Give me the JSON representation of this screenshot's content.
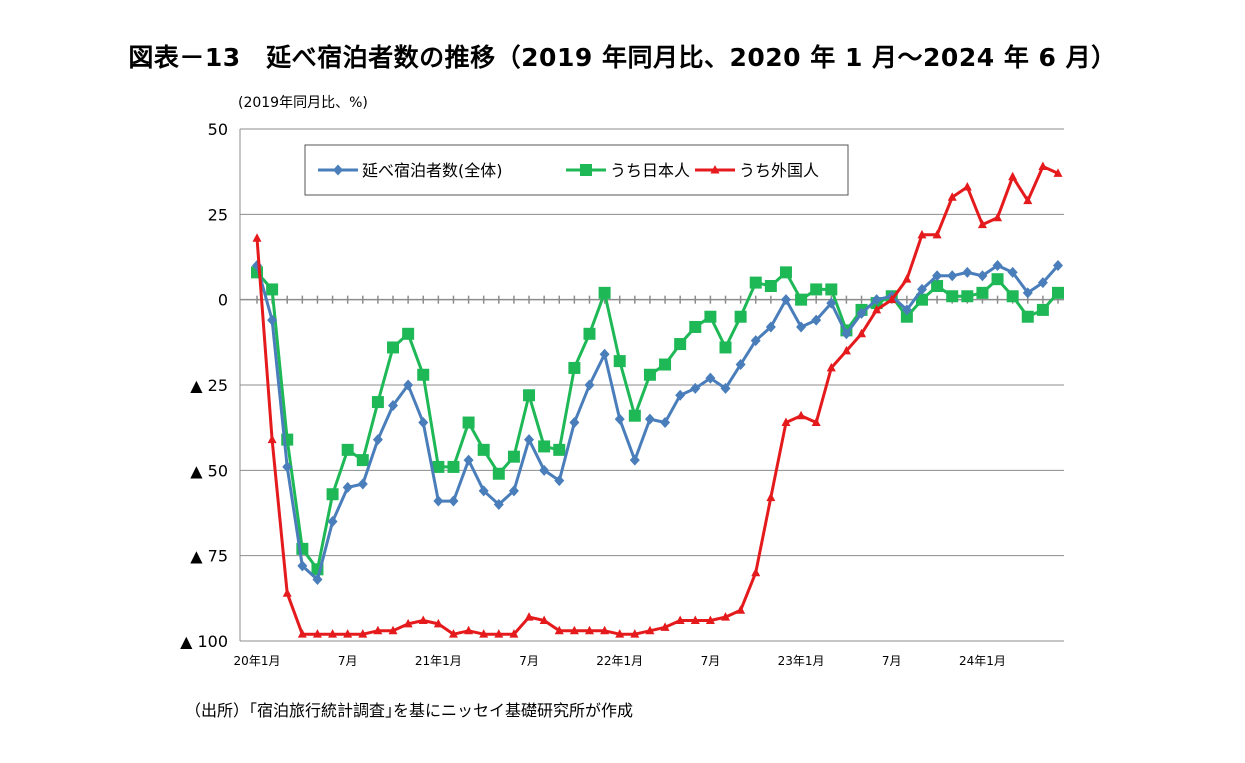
{
  "title": "図表－13　延べ宿泊者数の推移（2019 年同月比、2020 年 1 月～2024 年 6 月）",
  "unit_label": "(2019年同月比、%)",
  "source_note": "（出所）｢宿泊旅行統計調査｣を基にニッセイ基礎研究所が作成",
  "colors": {
    "total": "#4a7ebb",
    "japanese": "#1fb857",
    "foreign": "#e41a1c",
    "grid": "#8c8c8c"
  },
  "chart_data": {
    "type": "line",
    "ylabel": "(2019年同月比、%)",
    "ylim": [
      -100,
      50
    ],
    "grid": true,
    "legend_position": "top-left",
    "y_ticks": [
      {
        "value": 50,
        "label": "50"
      },
      {
        "value": 25,
        "label": "25"
      },
      {
        "value": 0,
        "label": "0"
      },
      {
        "value": -25,
        "label": "▲ 25"
      },
      {
        "value": -50,
        "label": "▲ 50"
      },
      {
        "value": -75,
        "label": "▲ 75"
      },
      {
        "value": -100,
        "label": "▲ 100"
      }
    ],
    "x_ticks": [
      {
        "index": 0,
        "label": "20年1月"
      },
      {
        "index": 6,
        "label": "7月"
      },
      {
        "index": 12,
        "label": "21年1月"
      },
      {
        "index": 18,
        "label": "7月"
      },
      {
        "index": 24,
        "label": "22年1月"
      },
      {
        "index": 30,
        "label": "7月"
      },
      {
        "index": 36,
        "label": "23年1月"
      },
      {
        "index": 42,
        "label": "7月"
      },
      {
        "index": 48,
        "label": "24年1月"
      }
    ],
    "series": [
      {
        "name": "延べ宿泊者数(全体)",
        "marker": "diamond",
        "color": "#4a7ebb",
        "values": [
          10,
          -6,
          -49,
          -78,
          -82,
          -65,
          -55,
          -54,
          -41,
          -31,
          -25,
          -36,
          -59,
          -59,
          -47,
          -56,
          -60,
          -56,
          -41,
          -50,
          -53,
          -36,
          -25,
          -16,
          -35,
          -47,
          -35,
          -36,
          -28,
          -26,
          -23,
          -26,
          -19,
          -12,
          -8,
          0,
          -8,
          -6,
          -1,
          -10,
          -4,
          0,
          1,
          -3,
          3,
          7,
          7,
          8,
          7,
          10,
          8,
          2,
          5,
          10
        ]
      },
      {
        "name": "うち日本人",
        "marker": "square",
        "color": "#1fb857",
        "values": [
          8,
          3,
          -41,
          -73,
          -79,
          -57,
          -44,
          -47,
          -30,
          -14,
          -10,
          -22,
          -49,
          -49,
          -36,
          -44,
          -51,
          -46,
          -28,
          -43,
          -44,
          -20,
          -10,
          2,
          -18,
          -34,
          -22,
          -19,
          -13,
          -8,
          -5,
          -14,
          -5,
          5,
          4,
          8,
          0,
          3,
          3,
          -9,
          -3,
          -1,
          1,
          -5,
          0,
          4,
          1,
          1,
          2,
          6,
          1,
          -5,
          -3,
          2
        ]
      },
      {
        "name": "うち外国人",
        "marker": "triangle",
        "color": "#e41a1c",
        "values": [
          18,
          -41,
          -86,
          -98,
          -98,
          -98,
          -98,
          -98,
          -97,
          -97,
          -95,
          -94,
          -95,
          -98,
          -97,
          -98,
          -98,
          -98,
          -93,
          -94,
          -97,
          -97,
          -97,
          -97,
          -98,
          -98,
          -97,
          -96,
          -94,
          -94,
          -94,
          -93,
          -91,
          -80,
          -58,
          -36,
          -34,
          -36,
          -20,
          -15,
          -10,
          -3,
          0,
          6,
          19,
          19,
          30,
          33,
          22,
          24,
          36,
          29,
          39,
          37
        ]
      }
    ]
  }
}
